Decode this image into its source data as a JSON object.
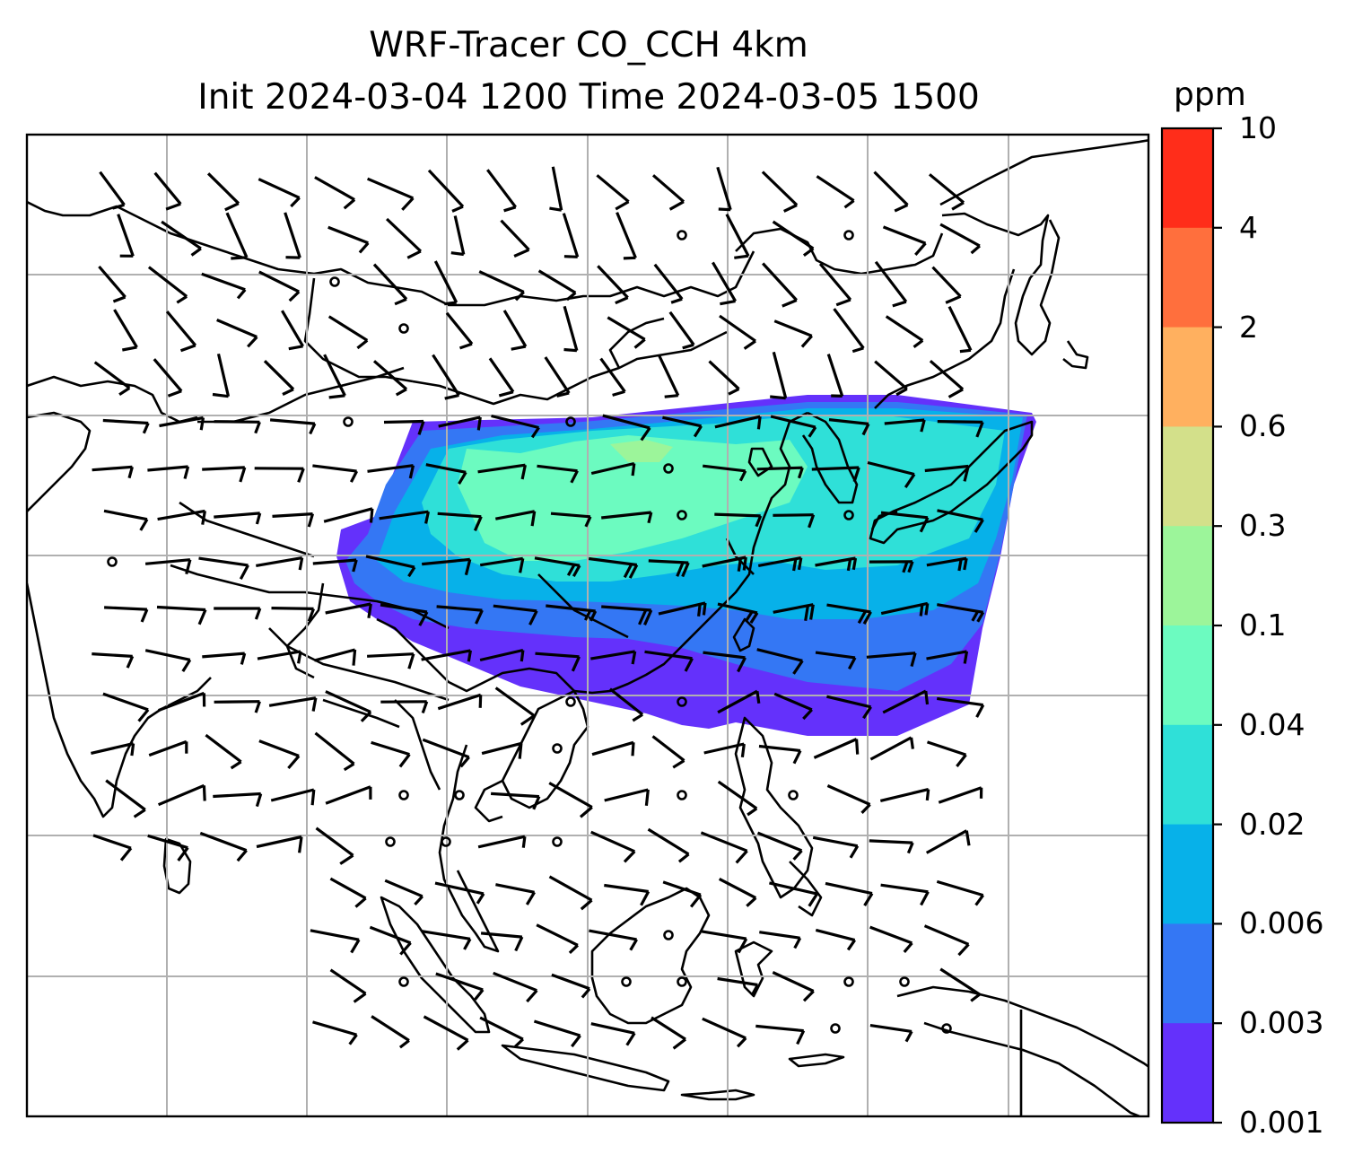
{
  "title": {
    "line1": "WRF-Tracer CO_CCH 4km",
    "line2": "Init 2024-03-04 1200 Time 2024-03-05 1500"
  },
  "colorbar": {
    "unit": "ppm",
    "levels": [
      "10",
      "4",
      "2",
      "0.6",
      "0.3",
      "0.1",
      "0.04",
      "0.02",
      "0.006",
      "0.003",
      "0.001"
    ],
    "colors": [
      "#ff2d1a",
      "#ff6f3d",
      "#ffb05f",
      "#d3e08a",
      "#9cf59a",
      "#6cfbc0",
      "#2fe0d8",
      "#07b1e9",
      "#3477f4",
      "#6431fb"
    ]
  },
  "map": {
    "gridlines": true,
    "wind_barbs": true,
    "plume_colors": {
      "lowest": "#6431fb",
      "low": "#3477f4",
      "mid": "#07b1e9",
      "midhigh": "#2fe0d8",
      "high": "#6cfbc0",
      "peak": "#9cf59a"
    }
  }
}
